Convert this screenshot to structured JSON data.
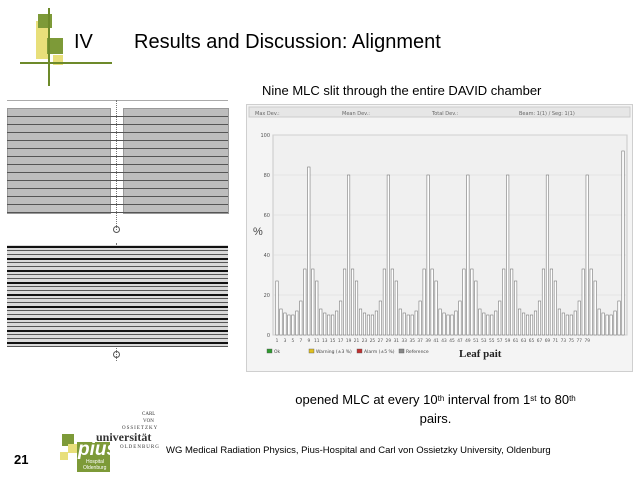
{
  "header": {
    "roman": "IV",
    "title": "Results and Discussion: Alignment"
  },
  "subtitle": "Nine MLC slit through the entire DAVID chamber",
  "caption": {
    "line1_a": "opened MLC at every 10",
    "sup1": "th",
    "line1_b": " interval from 1",
    "sup2": "st",
    "line1_c": " to 80",
    "sup3": "th",
    "line2": "pairs."
  },
  "footer": {
    "slide_number": "21",
    "text": "WG  Medical Radiation Physics, Pius-Hospital and Carl von Ossietzky University, Oldenburg"
  },
  "logo": {
    "carl": "CARL",
    "von": "VON",
    "ossietzky": "OSSIETZKY",
    "universitat": "universität",
    "oldenburg": "OLDENBURG",
    "pius": "pius",
    "hospital": "Hospital",
    "oldenburg2": "Oldenburg"
  },
  "colors": {
    "deco_yellow": "#e8df7a",
    "deco_green": "#7d9a38",
    "bars": "#ffffff",
    "bar_outline": "#7a7a7a"
  },
  "chart_data": {
    "type": "bar",
    "ylabel": "%",
    "xlabel": "Leaf pait",
    "ylim": [
      0,
      100
    ],
    "yticks": [
      "100",
      "80",
      "60",
      "40",
      "20",
      "0"
    ],
    "xticks": [
      "1",
      "3",
      "5",
      "7",
      "9",
      "11",
      "13",
      "15",
      "17",
      "19",
      "21",
      "23",
      "25",
      "27",
      "29",
      "31",
      "33",
      "35",
      "37",
      "39",
      "41",
      "43",
      "45",
      "47",
      "49",
      "51",
      "53",
      "55",
      "57",
      "59",
      "61",
      "63",
      "65",
      "67",
      "69",
      "71",
      "73",
      "75",
      "77",
      "79"
    ],
    "top_labels": [
      "Max Dev.:",
      "Mean Dev.:",
      "Total Dev.:",
      "Beam: 1(1) / Seg: 1(1)"
    ],
    "legend": [
      "Ok",
      "Warning (±3 %)",
      "Alarm (±5 %)",
      "Reference"
    ],
    "legend_colors": [
      "#2e9a2e",
      "#e0c020",
      "#c03030",
      "#888888"
    ],
    "values": [
      27,
      13,
      11,
      10,
      10,
      12,
      17,
      33,
      84,
      33,
      27,
      13,
      11,
      10,
      10,
      12,
      17,
      33,
      80,
      33,
      27,
      13,
      11,
      10,
      10,
      12,
      17,
      33,
      80,
      33,
      27,
      13,
      11,
      10,
      10,
      12,
      17,
      33,
      80,
      33,
      27,
      13,
      11,
      10,
      10,
      12,
      17,
      33,
      80,
      33,
      27,
      13,
      11,
      10,
      10,
      12,
      17,
      33,
      80,
      33,
      27,
      13,
      11,
      10,
      10,
      12,
      17,
      33,
      80,
      33,
      27,
      13,
      11,
      10,
      10,
      12,
      17,
      33,
      80,
      33,
      27,
      13,
      11,
      10,
      10,
      12,
      17,
      92
    ]
  }
}
